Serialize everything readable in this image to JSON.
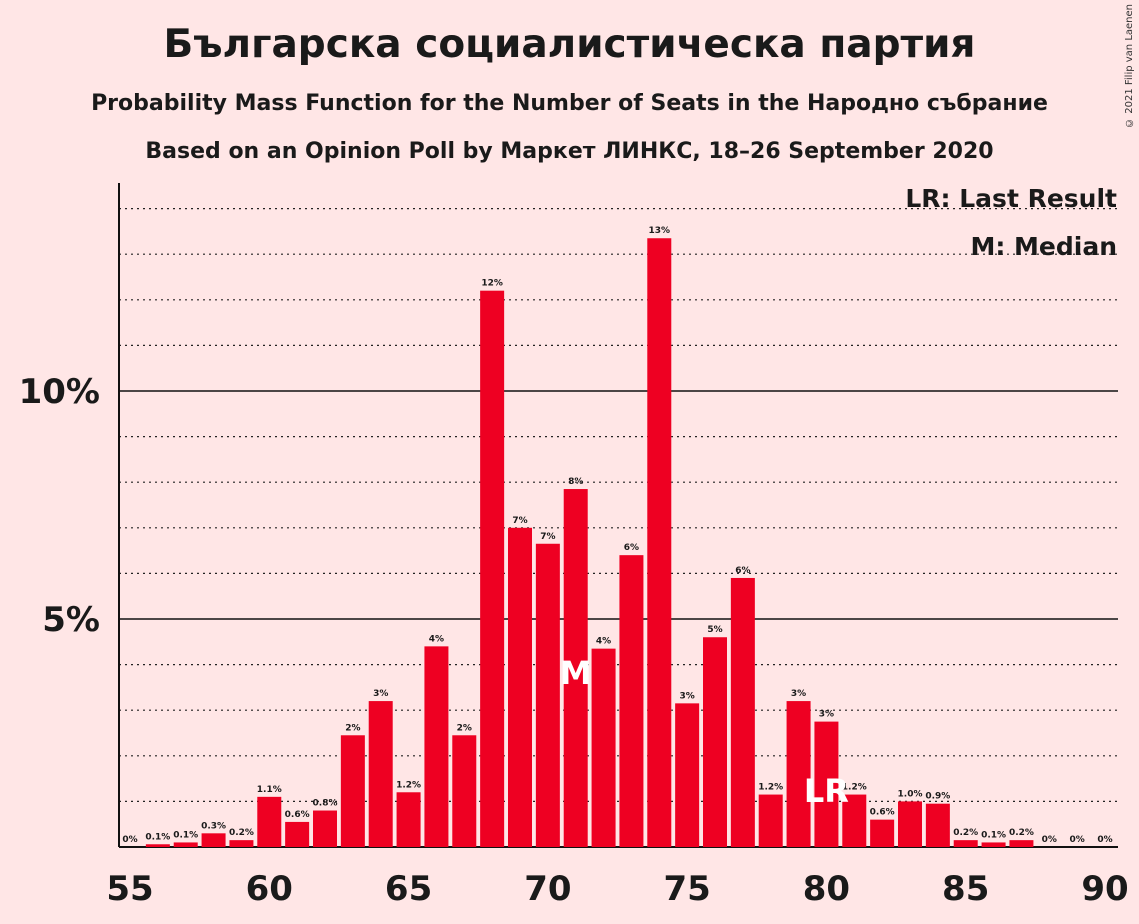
{
  "title": "Българска социалистическа партия",
  "subtitle_1": "Probability Mass Function for the Number of Seats in the Народно събрание",
  "subtitle_2": "Based on an Opinion Poll by Маркет ЛИНКС, 18–26 September 2020",
  "copyright": "© 2021 Filip van Laenen",
  "legend": {
    "last_result": "LR: Last Result",
    "median": "M: Median"
  },
  "colors": {
    "background": "#FFE6E6",
    "bar": "#EE0022",
    "text": "#1a1a1a"
  },
  "chart_data": {
    "type": "bar",
    "xlabel": "",
    "ylabel": "",
    "ylim": [
      0,
      14.5
    ],
    "xlim": [
      55,
      90
    ],
    "x_ticks": [
      55,
      60,
      65,
      70,
      75,
      80,
      85,
      90
    ],
    "y_ticks": [
      {
        "value": 5,
        "label": "5%"
      },
      {
        "value": 10,
        "label": "10%"
      }
    ],
    "minor_grid_step": 1,
    "median_seat": 71,
    "median_marker": "M",
    "last_result_seat": 80,
    "last_result_marker": "LR",
    "categories": [
      55,
      56,
      57,
      58,
      59,
      60,
      61,
      62,
      63,
      64,
      65,
      66,
      67,
      68,
      69,
      70,
      71,
      72,
      73,
      74,
      75,
      76,
      77,
      78,
      79,
      80,
      81,
      82,
      83,
      84,
      85,
      86,
      87,
      88,
      89,
      90
    ],
    "values": [
      0,
      0.06,
      0.1,
      0.3,
      0.15,
      1.1,
      0.55,
      0.8,
      2.45,
      3.2,
      1.2,
      4.4,
      2.45,
      12.2,
      7.0,
      6.65,
      7.85,
      4.35,
      6.4,
      13.35,
      3.15,
      4.6,
      5.9,
      1.15,
      3.2,
      2.75,
      1.15,
      0.6,
      1.0,
      0.95,
      0.15,
      0.1,
      0.15,
      0,
      0,
      0
    ],
    "labels": [
      "0%",
      "0.1%",
      "0.1%",
      "0.3%",
      "0.2%",
      "1.1%",
      "0.6%",
      "0.8%",
      "2%",
      "3%",
      "1.2%",
      "4%",
      "2%",
      "12%",
      "7%",
      "7%",
      "8%",
      "4%",
      "6%",
      "13%",
      "3%",
      "5%",
      "6%",
      "1.2%",
      "3%",
      "3%",
      "1.2%",
      "0.6%",
      "1.0%",
      "0.9%",
      "0.2%",
      "0.1%",
      "0.2%",
      "0%",
      "0%",
      "0%"
    ]
  }
}
